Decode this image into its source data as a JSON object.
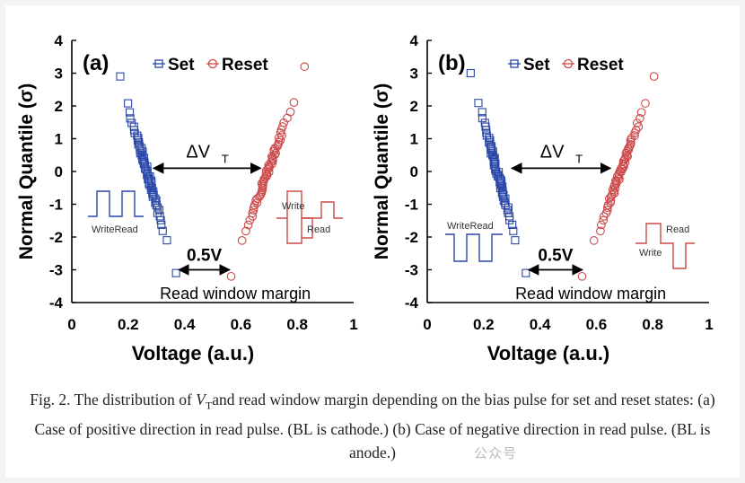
{
  "caption": {
    "prefix": "Fig. 2. The distribution of ",
    "vt_symbol": "V",
    "vt_subscript": "T",
    "rest": "and read window margin depending on the bias pulse for set and reset states: (a) Case of positive direction in read pulse. (BL is cathode.) (b) Case of negative direction in read pulse. (BL is anode.)"
  },
  "watermark": "公众号",
  "colors": {
    "set": "#2a47a8",
    "reset": "#cc4a4a",
    "axis": "#000000"
  },
  "chart_data": [
    {
      "type": "scatter",
      "panel_label": "(a)",
      "xlabel": "Voltage (a.u.)",
      "ylabel": "Normal Quantile (σ)",
      "xlim": [
        0,
        1
      ],
      "ylim": [
        -4,
        4
      ],
      "xticks": [
        "0",
        "0.2",
        "0.4",
        "0.6",
        "0.8",
        "1"
      ],
      "yticks": [
        "4",
        "3",
        "2",
        "1",
        "0",
        "-1",
        "-2",
        "-3",
        "-4"
      ],
      "legend": {
        "position": "top",
        "entries": [
          {
            "name": "Set",
            "marker": "square"
          },
          {
            "name": "Reset",
            "marker": "circle"
          }
        ]
      },
      "series": [
        {
          "name": "Set",
          "x_at_q_min": 0.37,
          "x_at_q_max": 0.17,
          "q_min": -3.1,
          "q_max": 2.9
        },
        {
          "name": "Reset",
          "x_at_q_min": 0.56,
          "x_at_q_max": 0.83,
          "q_min": -3.2,
          "q_max": 3.2
        }
      ],
      "annotations": {
        "delta_vt": {
          "text_main": "ΔV",
          "text_sub": "T",
          "y": 0.1,
          "x_from": 0.29,
          "x_to": 0.67
        },
        "margin": {
          "text": "0.5V",
          "y": -3.0,
          "x_from": 0.38,
          "x_to": 0.56
        },
        "window_text": "Read window margin",
        "pulse_left": "WriteRead",
        "pulse_right_top": "Write",
        "pulse_right_bottom": "Read"
      }
    },
    {
      "type": "scatter",
      "panel_label": "(b)",
      "xlabel": "Voltage (a.u.)",
      "ylabel": "Normal Quantile (σ)",
      "xlim": [
        0,
        1
      ],
      "ylim": [
        -4,
        4
      ],
      "xticks": [
        "0",
        "0.2",
        "0.4",
        "0.6",
        "0.8",
        "1"
      ],
      "yticks": [
        "4",
        "3",
        "2",
        "1",
        "0",
        "-1",
        "-2",
        "-3",
        "-4"
      ],
      "legend": {
        "position": "top",
        "entries": [
          {
            "name": "Set",
            "marker": "square"
          },
          {
            "name": "Reset",
            "marker": "circle"
          }
        ]
      },
      "series": [
        {
          "name": "Set",
          "x_at_q_min": 0.35,
          "x_at_q_max": 0.15,
          "q_min": -3.1,
          "q_max": 3.0
        },
        {
          "name": "Reset",
          "x_at_q_min": 0.55,
          "x_at_q_max": 0.81,
          "q_min": -3.2,
          "q_max": 2.9
        }
      ],
      "annotations": {
        "delta_vt": {
          "text_main": "ΔV",
          "text_sub": "T",
          "y": 0.1,
          "x_from": 0.3,
          "x_to": 0.65
        },
        "margin": {
          "text": "0.5V",
          "y": -3.0,
          "x_from": 0.36,
          "x_to": 0.55
        },
        "window_text": "Read window margin",
        "pulse_left": "WriteRead",
        "pulse_right_top": "Read",
        "pulse_right_bottom": "Write"
      }
    }
  ]
}
